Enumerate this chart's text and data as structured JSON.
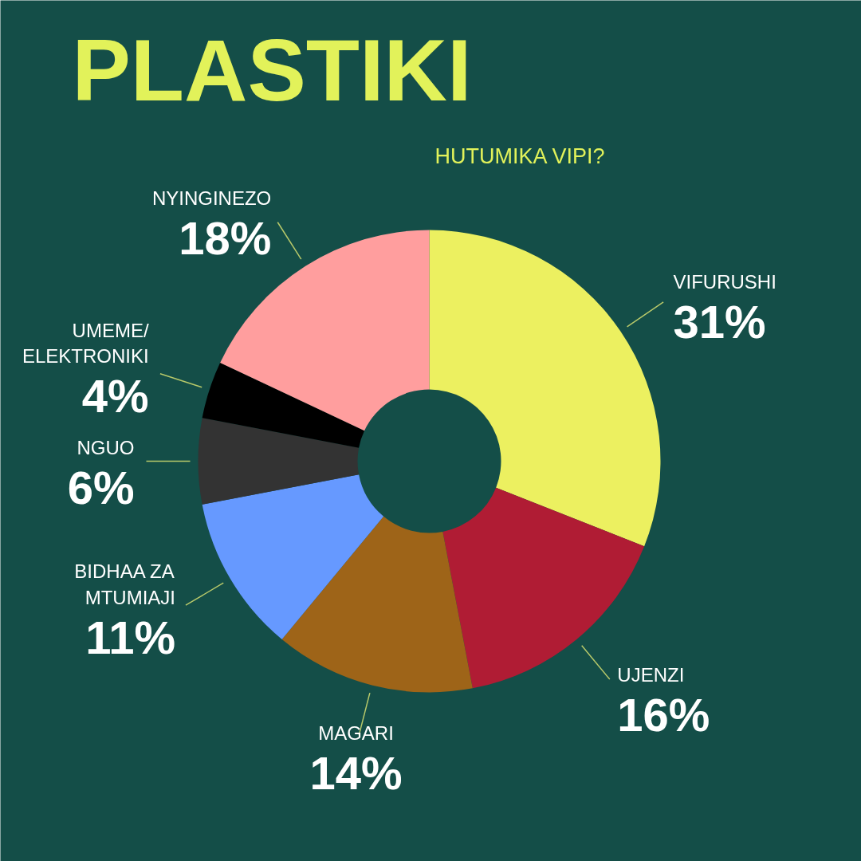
{
  "chart_data": {
    "type": "donut",
    "title": "PLASTIKI",
    "subtitle": "HUTUMIKA VIPI?",
    "categories": [
      "VIFURUSHI",
      "UJENZI",
      "MAGARI",
      "BIDHAA ZA\nMTUMIAJI",
      "NGUO",
      "UMEME/\nELEKTRONIKI",
      "NYINGINEZO"
    ],
    "values": [
      31,
      16,
      14,
      11,
      6,
      4,
      18
    ],
    "value_labels": [
      "31%",
      "16%",
      "14%",
      "11%",
      "6%",
      "4%",
      "18%"
    ],
    "colors": [
      "#ecf060",
      "#b01c34",
      "#9e6418",
      "#6699ff",
      "#333333",
      "#000000",
      "#ff9e9e"
    ]
  }
}
